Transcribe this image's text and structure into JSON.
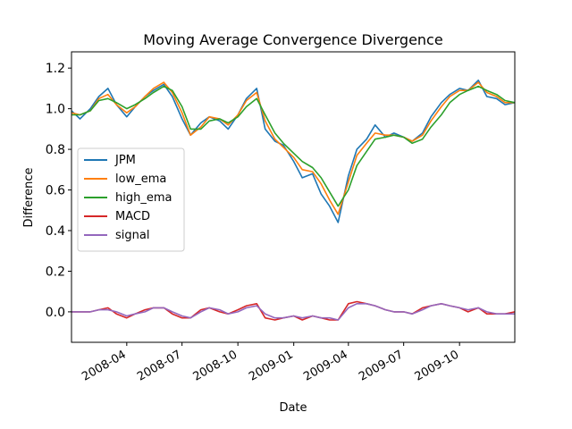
{
  "chart_data": {
    "type": "line",
    "title": "Moving Average Convergence Divergence",
    "xlabel": "Date",
    "ylabel": "Difference",
    "x_ticks": [
      "2008-04",
      "2008-07",
      "2008-10",
      "2009-01",
      "2009-04",
      "2009-07",
      "2009-10"
    ],
    "y_ticks": [
      "0.0",
      "0.2",
      "0.4",
      "0.6",
      "0.8",
      "1.0",
      "1.2"
    ],
    "xlim": [
      "2008-01-01",
      "2009-12-31"
    ],
    "ylim": [
      -0.15,
      1.28
    ],
    "grid": false,
    "legend_position": "center-left",
    "x": [
      "2008-01-01",
      "2008-01-15",
      "2008-02-01",
      "2008-02-15",
      "2008-03-01",
      "2008-03-15",
      "2008-04-01",
      "2008-04-15",
      "2008-05-01",
      "2008-05-15",
      "2008-06-01",
      "2008-06-15",
      "2008-07-01",
      "2008-07-15",
      "2008-08-01",
      "2008-08-15",
      "2008-09-01",
      "2008-09-15",
      "2008-10-01",
      "2008-10-15",
      "2008-11-01",
      "2008-11-15",
      "2008-12-01",
      "2008-12-15",
      "2009-01-01",
      "2009-01-15",
      "2009-02-01",
      "2009-02-15",
      "2009-03-01",
      "2009-03-15",
      "2009-04-01",
      "2009-04-15",
      "2009-05-01",
      "2009-05-15",
      "2009-06-01",
      "2009-06-15",
      "2009-07-01",
      "2009-07-15",
      "2009-08-01",
      "2009-08-15",
      "2009-09-01",
      "2009-09-15",
      "2009-10-01",
      "2009-10-15",
      "2009-11-01",
      "2009-11-15",
      "2009-12-01",
      "2009-12-15",
      "2009-12-31"
    ],
    "series": [
      {
        "name": "JPM",
        "color": "#1f77b4",
        "values": [
          0.99,
          0.95,
          1.0,
          1.06,
          1.1,
          1.02,
          0.96,
          1.01,
          1.06,
          1.09,
          1.12,
          1.06,
          0.95,
          0.87,
          0.93,
          0.96,
          0.94,
          0.9,
          0.97,
          1.05,
          1.1,
          0.9,
          0.84,
          0.82,
          0.74,
          0.66,
          0.68,
          0.58,
          0.52,
          0.44,
          0.67,
          0.8,
          0.85,
          0.92,
          0.86,
          0.88,
          0.86,
          0.84,
          0.88,
          0.96,
          1.03,
          1.07,
          1.1,
          1.09,
          1.14,
          1.06,
          1.05,
          1.02,
          1.03
        ]
      },
      {
        "name": "low_ema",
        "color": "#ff7f0e",
        "values": [
          0.98,
          0.97,
          0.99,
          1.05,
          1.07,
          1.02,
          0.98,
          1.01,
          1.06,
          1.1,
          1.13,
          1.08,
          0.98,
          0.87,
          0.91,
          0.96,
          0.95,
          0.92,
          0.97,
          1.04,
          1.08,
          0.94,
          0.85,
          0.81,
          0.76,
          0.7,
          0.69,
          0.63,
          0.55,
          0.48,
          0.64,
          0.77,
          0.83,
          0.88,
          0.87,
          0.87,
          0.86,
          0.84,
          0.87,
          0.94,
          1.01,
          1.06,
          1.09,
          1.09,
          1.13,
          1.08,
          1.06,
          1.03,
          1.03
        ]
      },
      {
        "name": "high_ema",
        "color": "#2ca02c",
        "values": [
          0.97,
          0.97,
          0.99,
          1.04,
          1.05,
          1.03,
          1.0,
          1.02,
          1.05,
          1.08,
          1.11,
          1.09,
          1.01,
          0.9,
          0.9,
          0.94,
          0.95,
          0.93,
          0.96,
          1.01,
          1.05,
          0.97,
          0.88,
          0.83,
          0.78,
          0.74,
          0.71,
          0.66,
          0.59,
          0.52,
          0.6,
          0.72,
          0.79,
          0.85,
          0.86,
          0.87,
          0.86,
          0.83,
          0.85,
          0.91,
          0.97,
          1.03,
          1.07,
          1.09,
          1.11,
          1.09,
          1.07,
          1.04,
          1.03
        ]
      },
      {
        "name": "MACD",
        "color": "#d62728",
        "values": [
          0.0,
          0.0,
          0.0,
          0.01,
          0.02,
          -0.01,
          -0.03,
          -0.01,
          0.01,
          0.02,
          0.02,
          -0.01,
          -0.03,
          -0.03,
          0.01,
          0.02,
          0.0,
          -0.01,
          0.01,
          0.03,
          0.04,
          -0.03,
          -0.04,
          -0.03,
          -0.02,
          -0.04,
          -0.02,
          -0.03,
          -0.04,
          -0.04,
          0.04,
          0.05,
          0.04,
          0.03,
          0.01,
          0.0,
          0.0,
          -0.01,
          0.02,
          0.03,
          0.04,
          0.03,
          0.02,
          0.0,
          0.02,
          -0.01,
          -0.01,
          -0.01,
          0.0
        ]
      },
      {
        "name": "signal",
        "color": "#9467bd",
        "values": [
          0.0,
          0.0,
          0.0,
          0.01,
          0.01,
          0.0,
          -0.02,
          -0.01,
          0.0,
          0.02,
          0.02,
          0.0,
          -0.02,
          -0.03,
          0.0,
          0.02,
          0.01,
          -0.01,
          0.0,
          0.02,
          0.03,
          -0.01,
          -0.03,
          -0.03,
          -0.02,
          -0.03,
          -0.02,
          -0.03,
          -0.03,
          -0.04,
          0.02,
          0.04,
          0.04,
          0.03,
          0.01,
          0.0,
          0.0,
          -0.01,
          0.01,
          0.03,
          0.04,
          0.03,
          0.02,
          0.01,
          0.02,
          0.0,
          -0.01,
          -0.01,
          -0.01
        ]
      }
    ]
  }
}
